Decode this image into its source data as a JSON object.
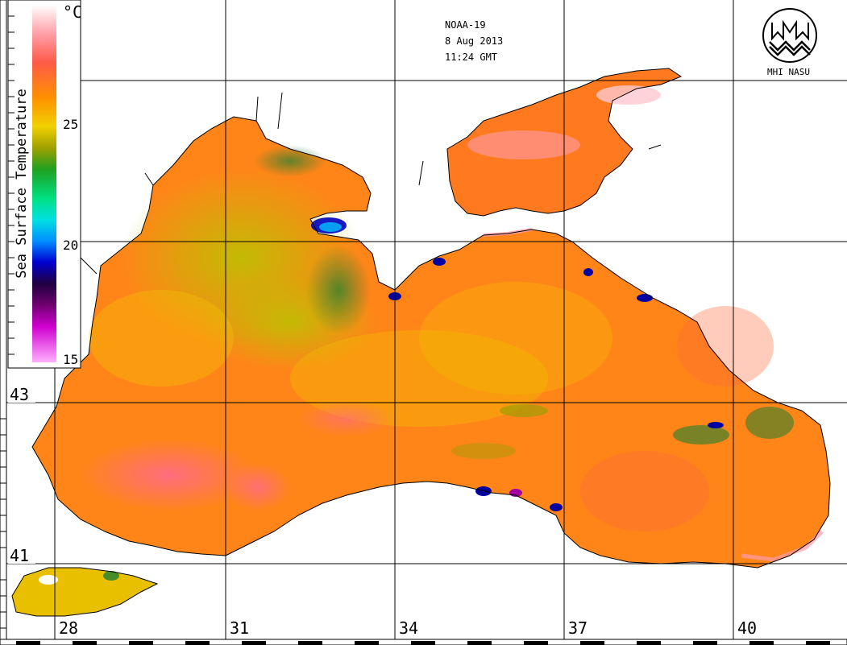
{
  "header": {
    "satellite": "NOAA-19",
    "date": "8 Aug 2013",
    "time": "11:24 GMT"
  },
  "logo": {
    "text": "MHI NASU"
  },
  "legend": {
    "title": "Sea Surface Temperature",
    "unit": "°C",
    "ticks": [
      "25",
      "20",
      "15"
    ],
    "colors": [
      "#ffffff",
      "#ff6070",
      "#ff8000",
      "#f0d000",
      "#90a000",
      "#30a030",
      "#00e0e0",
      "#0060ff",
      "#0000a0",
      "#400040",
      "#a000a0",
      "#ff80ff"
    ]
  },
  "latitudes": [
    "43",
    "41"
  ],
  "longitudes": [
    "28",
    "31",
    "34",
    "37",
    "40"
  ],
  "palette": {
    "sea_warm": "#ff7a18",
    "sea_mid": "#f2b800",
    "sea_cool": "#c9c800",
    "sea_hot": "#ff5a6a",
    "land": "#ffffff",
    "grid": "#000000"
  }
}
